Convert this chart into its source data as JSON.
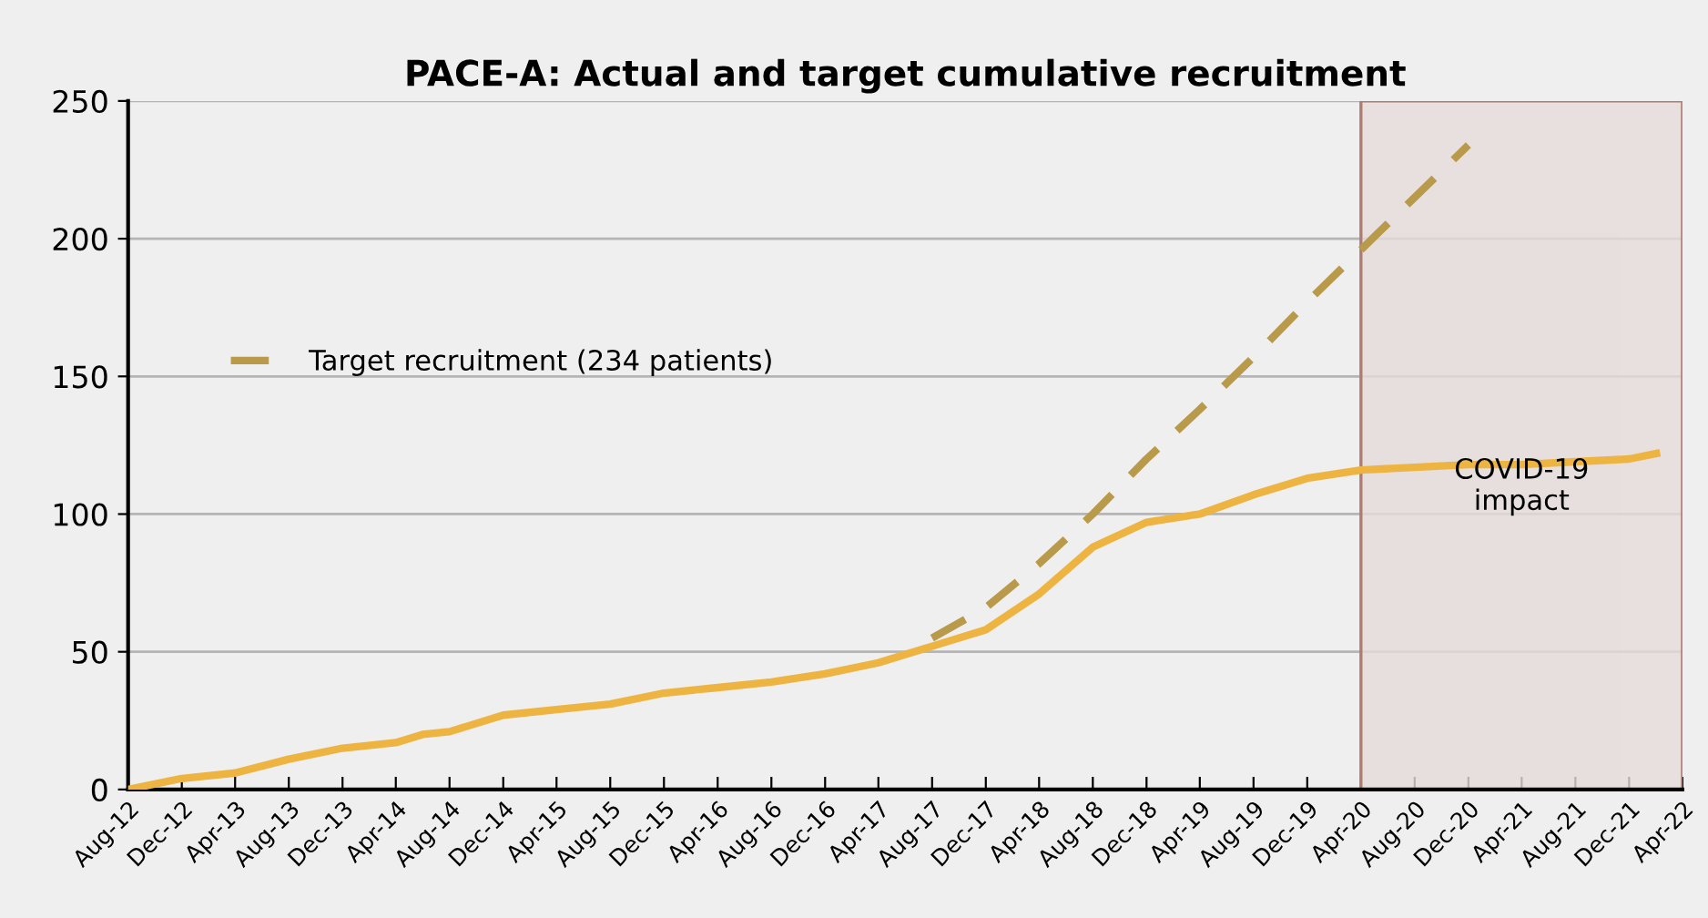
{
  "chart_data": {
    "type": "line",
    "title": "PACE-A: Actual and target cumulative recruitment",
    "series": [
      {
        "color": "#eeb441",
        "x": [
          "2012-08",
          "2012-12",
          "2013-04",
          "2013-08",
          "2013-12",
          "2014-04",
          "2014-06",
          "2014-08",
          "2014-12",
          "2015-04",
          "2015-08",
          "2015-12",
          "2016-04",
          "2016-08",
          "2016-12",
          "2017-04",
          "2017-08",
          "2017-12",
          "2018-04",
          "2018-08",
          "2018-12",
          "2019-04",
          "2019-08",
          "2019-12",
          "2020-04",
          "2020-08",
          "2020-12",
          "2021-04",
          "2021-08",
          "2021-12",
          "2022-02"
        ],
        "values": [
          0,
          4,
          6,
          11,
          15,
          17,
          20,
          21,
          27,
          29,
          31,
          35,
          37,
          39,
          42,
          46,
          52,
          58,
          71,
          88,
          97,
          100,
          107,
          113,
          116,
          117,
          118,
          118,
          119,
          120,
          122
        ]
      },
      {
        "name": "Target recruitment (234 patients)",
        "color": "#b89a4a",
        "line_style": "dashed",
        "x": [
          "2017-08",
          "2017-12",
          "2018-04",
          "2018-08",
          "2018-12",
          "2019-04",
          "2019-08",
          "2019-12",
          "2020-04",
          "2020-08",
          "2020-12"
        ],
        "values": [
          55,
          66,
          82,
          100,
          120,
          138,
          157,
          177,
          196,
          215,
          234
        ]
      }
    ],
    "xlim": [
      "2012-08",
      "2022-04"
    ],
    "xticks": [
      {
        "value": "2012-08",
        "label": "Aug-12"
      },
      {
        "value": "2012-12",
        "label": "Dec-12"
      },
      {
        "value": "2013-04",
        "label": "Apr-13"
      },
      {
        "value": "2013-08",
        "label": "Aug-13"
      },
      {
        "value": "2013-12",
        "label": "Dec-13"
      },
      {
        "value": "2014-04",
        "label": "Apr-14"
      },
      {
        "value": "2014-08",
        "label": "Aug-14"
      },
      {
        "value": "2014-12",
        "label": "Dec-14"
      },
      {
        "value": "2015-04",
        "label": "Apr-15"
      },
      {
        "value": "2015-08",
        "label": "Aug-15"
      },
      {
        "value": "2015-12",
        "label": "Dec-15"
      },
      {
        "value": "2016-04",
        "label": "Apr-16"
      },
      {
        "value": "2016-08",
        "label": "Aug-16"
      },
      {
        "value": "2016-12",
        "label": "Dec-16"
      },
      {
        "value": "2017-04",
        "label": "Apr-17"
      },
      {
        "value": "2017-08",
        "label": "Aug-17"
      },
      {
        "value": "2017-12",
        "label": "Dec-17"
      },
      {
        "value": "2018-04",
        "label": "Apr-18"
      },
      {
        "value": "2018-08",
        "label": "Aug-18"
      },
      {
        "value": "2018-12",
        "label": "Dec-18"
      },
      {
        "value": "2019-04",
        "label": "Apr-19"
      },
      {
        "value": "2019-08",
        "label": "Aug-19"
      },
      {
        "value": "2019-12",
        "label": "Dec-19"
      },
      {
        "value": "2020-04",
        "label": "Apr-20"
      },
      {
        "value": "2020-08",
        "label": "Aug-20"
      },
      {
        "value": "2020-12",
        "label": "Dec-20"
      },
      {
        "value": "2021-04",
        "label": "Apr-21"
      },
      {
        "value": "2021-08",
        "label": "Aug-21"
      },
      {
        "value": "2021-12",
        "label": "Dec-21"
      },
      {
        "value": "2022-04",
        "label": "Apr-22"
      }
    ],
    "ylim": [
      0,
      250
    ],
    "yticks": [
      0,
      50,
      100,
      150,
      200,
      250
    ],
    "grid": "y",
    "legend": "left",
    "line_style": "solid",
    "marker": "none",
    "bands": [
      {
        "axis": "x",
        "from": "2020-04",
        "to": "2022-04",
        "label": "COVID-19\nimpact",
        "color": "#e6dcdb"
      }
    ]
  }
}
